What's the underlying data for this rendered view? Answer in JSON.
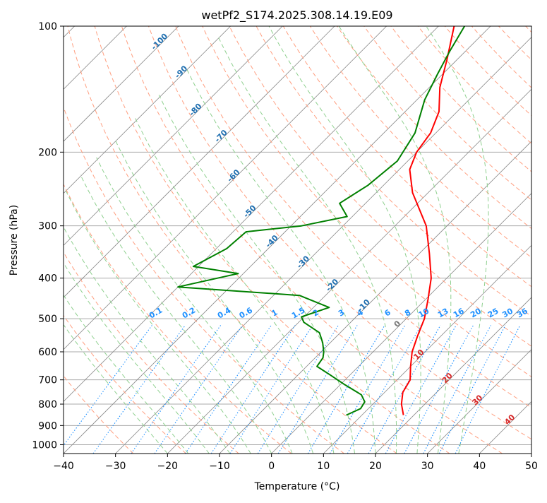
{
  "chart_data": {
    "type": "line",
    "title": "wetPf2_S174.2025.308.14.19.E09",
    "xlabel": "Temperature (°C)",
    "ylabel": "Pressure (hPa)",
    "xlim": [
      -40,
      50
    ],
    "ylim": [
      1050,
      100
    ],
    "x_ticks": [
      -40,
      -30,
      -20,
      -10,
      0,
      10,
      20,
      30,
      40,
      50
    ],
    "y_ticks": [
      100,
      200,
      300,
      400,
      500,
      600,
      700,
      800,
      900,
      1000
    ],
    "grid": true,
    "skew": 1.0,
    "series": [
      {
        "name": "temperature",
        "color": "#ff0000",
        "points": [
          [
            850,
            18.0
          ],
          [
            800,
            15.5
          ],
          [
            750,
            13.5
          ],
          [
            700,
            12.5
          ],
          [
            650,
            10.0
          ],
          [
            600,
            7.5
          ],
          [
            550,
            5.5
          ],
          [
            500,
            3.5
          ],
          [
            450,
            0.5
          ],
          [
            400,
            -3.0
          ],
          [
            350,
            -8.0
          ],
          [
            300,
            -14.0
          ],
          [
            250,
            -23.0
          ],
          [
            220,
            -28.0
          ],
          [
            200,
            -30.0
          ],
          [
            180,
            -31.0
          ],
          [
            160,
            -33.5
          ],
          [
            140,
            -38.0
          ],
          [
            120,
            -42.0
          ],
          [
            100,
            -47.0
          ]
        ]
      },
      {
        "name": "dewpoint",
        "color": "#008000",
        "points": [
          [
            850,
            7.0
          ],
          [
            820,
            8.5
          ],
          [
            790,
            8.0
          ],
          [
            760,
            6.0
          ],
          [
            720,
            1.0
          ],
          [
            680,
            -4.0
          ],
          [
            650,
            -8.0
          ],
          [
            620,
            -8.5
          ],
          [
            600,
            -9.5
          ],
          [
            570,
            -11.5
          ],
          [
            540,
            -14.0
          ],
          [
            510,
            -19.0
          ],
          [
            495,
            -20.5
          ],
          [
            470,
            -17.0
          ],
          [
            440,
            -25.0
          ],
          [
            420,
            -50.0
          ],
          [
            390,
            -41.0
          ],
          [
            375,
            -51.0
          ],
          [
            340,
            -48.0
          ],
          [
            310,
            -47.5
          ],
          [
            300,
            -38.0
          ],
          [
            285,
            -31.0
          ],
          [
            265,
            -35.0
          ],
          [
            240,
            -33.0
          ],
          [
            210,
            -32.0
          ],
          [
            180,
            -34.0
          ],
          [
            150,
            -38.5
          ],
          [
            130,
            -41.0
          ],
          [
            115,
            -43.0
          ],
          [
            100,
            -45.0
          ]
        ]
      }
    ],
    "dry_adiabat_labels": [
      "-100",
      "-90",
      "-80",
      "-70",
      "-60",
      "-50",
      "-40",
      "-30",
      "-20",
      "-10"
    ],
    "moist_labels": [
      "0",
      "10",
      "20",
      "30",
      "40"
    ],
    "mixing_ratio_labels": [
      "0.1",
      "0.2",
      "0.4",
      "0.6",
      "1",
      "1.5",
      "2",
      "3",
      "4",
      "6",
      "8",
      "10",
      "13",
      "16",
      "20",
      "25",
      "30",
      "36"
    ],
    "colors": {
      "background": "#ffffff",
      "grid": "#aaaaaa",
      "isotherm": "#888888",
      "dry_adiabat": "#ff9f80",
      "moist_adiabat": "#8fd08f",
      "mixing_ratio": "#1e90ff"
    }
  }
}
